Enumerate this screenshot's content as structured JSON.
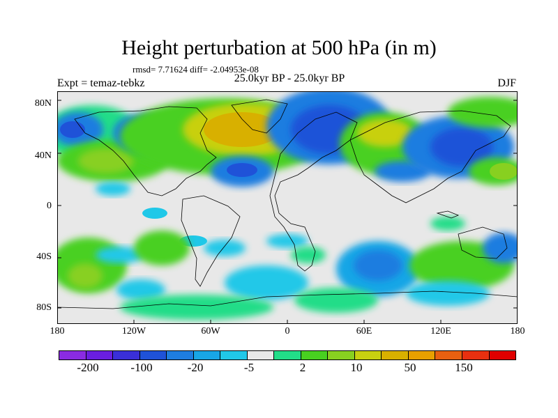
{
  "title": "Height perturbation at 500 hPa (in m)",
  "stats": "rmsd= 7.71624 diff= -2.04953e-08",
  "expt": "Expt = temaz-tebkz",
  "period": "25.0kyr BP - 25.0kyr BP",
  "season": "DJF",
  "lat_labels": [
    "80N",
    "40N",
    "0",
    "40S",
    "80S"
  ],
  "lon_labels": [
    "180",
    "120W",
    "60W",
    "0",
    "60E",
    "120E",
    "180"
  ],
  "colorbar": {
    "labels": [
      "-200",
      "-100",
      "-20",
      "-5",
      "2",
      "10",
      "50",
      "150"
    ],
    "colors": [
      "#8a2be2",
      "#6a1ee0",
      "#3a2fd8",
      "#1f52d8",
      "#1e7de0",
      "#18a6e6",
      "#20c8e8",
      "#e8e8e8",
      "#22dd88",
      "#48d020",
      "#88d020",
      "#c8d010",
      "#d8b000",
      "#e8a000",
      "#e86010",
      "#e83010",
      "#e00000"
    ]
  },
  "chart_data": {
    "type": "heatmap",
    "title": "Height perturbation at 500 hPa (in m)",
    "variable": "500 hPa height perturbation",
    "units": "m",
    "season": "DJF",
    "rmsd": 7.71624,
    "diff": -2.04953e-08,
    "lon_range": [
      -180,
      180
    ],
    "lat_range": [
      -90,
      90
    ],
    "contour_levels": [
      -200,
      -100,
      -20,
      -5,
      2,
      10,
      50,
      150
    ]
  }
}
